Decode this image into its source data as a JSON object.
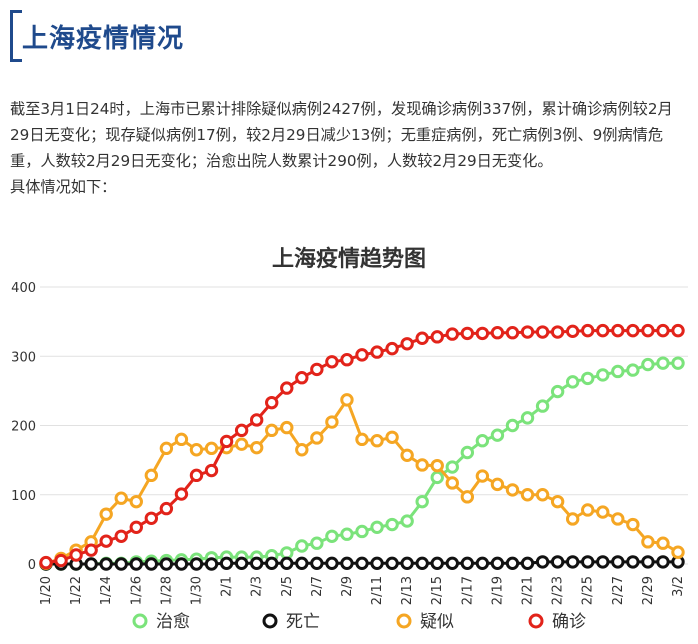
{
  "header": {
    "title": "上海疫情情况"
  },
  "intro": {
    "paragraph": "截至3月1日24时，上海市已累计排除疑似病例2427例，发现确诊病例337例，累计确诊病例较2月29日无变化；现存疑似病例17例，较2月29日减少13例；无重症病例，死亡病例3例、9例病情危重，人数较2月29日无变化；治愈出院人数累计290例，人数较2月29日无变化。",
    "followup": "具体情况如下："
  },
  "chart_data": {
    "type": "line",
    "title": "上海疫情趋势图",
    "xlabel": "",
    "ylabel": "",
    "ylim": [
      0,
      400
    ],
    "yticks": [
      0,
      100,
      200,
      300,
      400
    ],
    "grid": true,
    "legend_position": "bottom",
    "x": [
      "1/20",
      "1/21",
      "1/22",
      "1/23",
      "1/24",
      "1/25",
      "1/26",
      "1/27",
      "1/28",
      "1/29",
      "1/30",
      "1/31",
      "2/1",
      "2/2",
      "2/3",
      "2/4",
      "2/5",
      "2/6",
      "2/7",
      "2/8",
      "2/9",
      "2/10",
      "2/11",
      "2/12",
      "2/13",
      "2/14",
      "2/15",
      "2/16",
      "2/17",
      "2/18",
      "2/19",
      "2/20",
      "2/21",
      "2/22",
      "2/23",
      "2/24",
      "2/25",
      "2/26",
      "2/27",
      "2/28",
      "2/29",
      "3/1",
      "3/2"
    ],
    "xtick_labels": [
      "1/20",
      "1/22",
      "1/24",
      "1/26",
      "1/28",
      "1/30",
      "2/1",
      "2/3",
      "2/5",
      "2/7",
      "2/9",
      "2/11",
      "2/13",
      "2/15",
      "2/17",
      "2/19",
      "2/21",
      "2/23",
      "2/25",
      "2/27",
      "2/29",
      "3/2"
    ],
    "series": [
      {
        "name": "治愈",
        "color": "#7be37b",
        "values": [
          0,
          0,
          0,
          0,
          1,
          1,
          3,
          4,
          5,
          6,
          7,
          9,
          10,
          10,
          10,
          12,
          16,
          26,
          30,
          40,
          43,
          47,
          53,
          57,
          62,
          90,
          125,
          140,
          161,
          178,
          186,
          200,
          211,
          228,
          249,
          263,
          268,
          273,
          278,
          280,
          288,
          290,
          290
        ]
      },
      {
        "name": "死亡",
        "color": "#111111",
        "values": [
          0,
          0,
          0,
          0,
          0,
          0,
          0,
          0,
          0,
          0,
          0,
          0,
          1,
          1,
          1,
          1,
          1,
          1,
          1,
          1,
          1,
          1,
          1,
          1,
          1,
          1,
          1,
          1,
          1,
          1,
          1,
          1,
          1,
          3,
          3,
          3,
          3,
          3,
          3,
          3,
          3,
          3,
          3
        ]
      },
      {
        "name": "疑似",
        "color": "#f5a623",
        "values": [
          1,
          8,
          20,
          32,
          72,
          95,
          90,
          128,
          167,
          180,
          165,
          167,
          168,
          173,
          168,
          193,
          197,
          165,
          182,
          205,
          237,
          180,
          178,
          183,
          157,
          143,
          142,
          117,
          97,
          127,
          115,
          107,
          100,
          100,
          90,
          65,
          78,
          75,
          65,
          57,
          32,
          30,
          17
        ]
      },
      {
        "name": "确诊",
        "color": "#e2231a",
        "values": [
          2,
          5,
          13,
          20,
          33,
          40,
          53,
          66,
          80,
          101,
          128,
          135,
          177,
          193,
          208,
          233,
          254,
          269,
          281,
          292,
          295,
          302,
          306,
          311,
          318,
          326,
          328,
          332,
          333,
          333,
          334,
          334,
          335,
          335,
          335,
          336,
          337,
          337,
          337,
          337,
          337,
          337,
          337
        ]
      }
    ]
  }
}
